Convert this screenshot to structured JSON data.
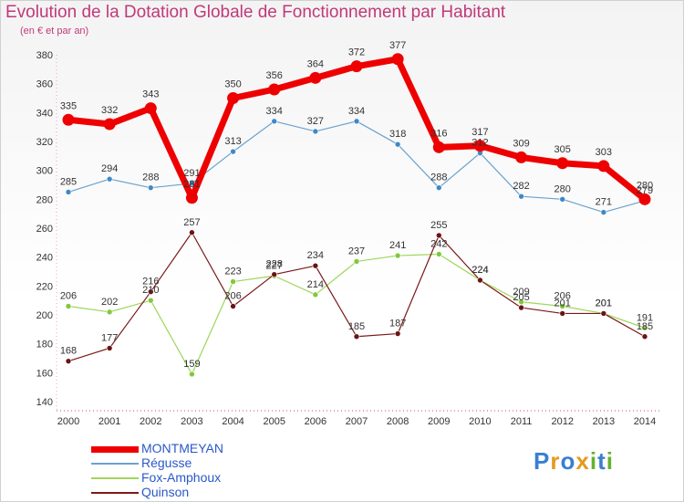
{
  "title": "Evolution de la Dotation Globale de Fonctionnement par Habitant",
  "subtitle": "(en € et par an)",
  "logo": {
    "text": "Proxiti",
    "letters": [
      {
        "ch": "P",
        "color": "#3a7fd0"
      },
      {
        "ch": "r",
        "color": "#e59a1c"
      },
      {
        "ch": "o",
        "color": "#3a7fd0"
      },
      {
        "ch": "x",
        "color": "#e59a1c"
      },
      {
        "ch": "i",
        "color": "#63b32e"
      },
      {
        "ch": "t",
        "color": "#3a7fd0"
      },
      {
        "ch": "i",
        "color": "#63b32e"
      }
    ]
  },
  "chart_data": {
    "type": "line",
    "title": "Evolution de la Dotation Globale de Fonctionnement par Habitant",
    "subtitle": "(en € et par an)",
    "categories": [
      "2000",
      "2001",
      "2002",
      "2003",
      "2004",
      "2005",
      "2006",
      "2007",
      "2008",
      "2009",
      "2010",
      "2011",
      "2012",
      "2013",
      "2014"
    ],
    "ylim": [
      140,
      380
    ],
    "yticks": [
      140,
      160,
      180,
      200,
      220,
      240,
      260,
      280,
      300,
      320,
      340,
      360,
      380
    ],
    "grid": false,
    "legend_position": "bottom-left",
    "series": [
      {
        "name": "MONTMEYAN",
        "color": "#ee0000",
        "marker": "#ee0000",
        "emphasis": true,
        "values": [
          335,
          332,
          343,
          281,
          350,
          356,
          364,
          372,
          377,
          316,
          317,
          309,
          305,
          303,
          280
        ]
      },
      {
        "name": "Régusse",
        "color": "#6aa2cf",
        "marker": "#3f88c8",
        "values": [
          285,
          294,
          288,
          291,
          313,
          334,
          327,
          334,
          318,
          288,
          312,
          282,
          280,
          271,
          279
        ]
      },
      {
        "name": "Fox-Amphoux",
        "color": "#9fd65a",
        "marker": "#82c83c",
        "values": [
          206,
          202,
          210,
          159,
          223,
          227,
          214,
          237,
          241,
          242,
          224,
          209,
          206,
          201,
          191
        ]
      },
      {
        "name": "Quinson",
        "color": "#7a1a1a",
        "marker": "#6a1414",
        "values": [
          168,
          177,
          216,
          257,
          206,
          228,
          234,
          185,
          187,
          255,
          224,
          205,
          201,
          201,
          185
        ]
      }
    ]
  }
}
